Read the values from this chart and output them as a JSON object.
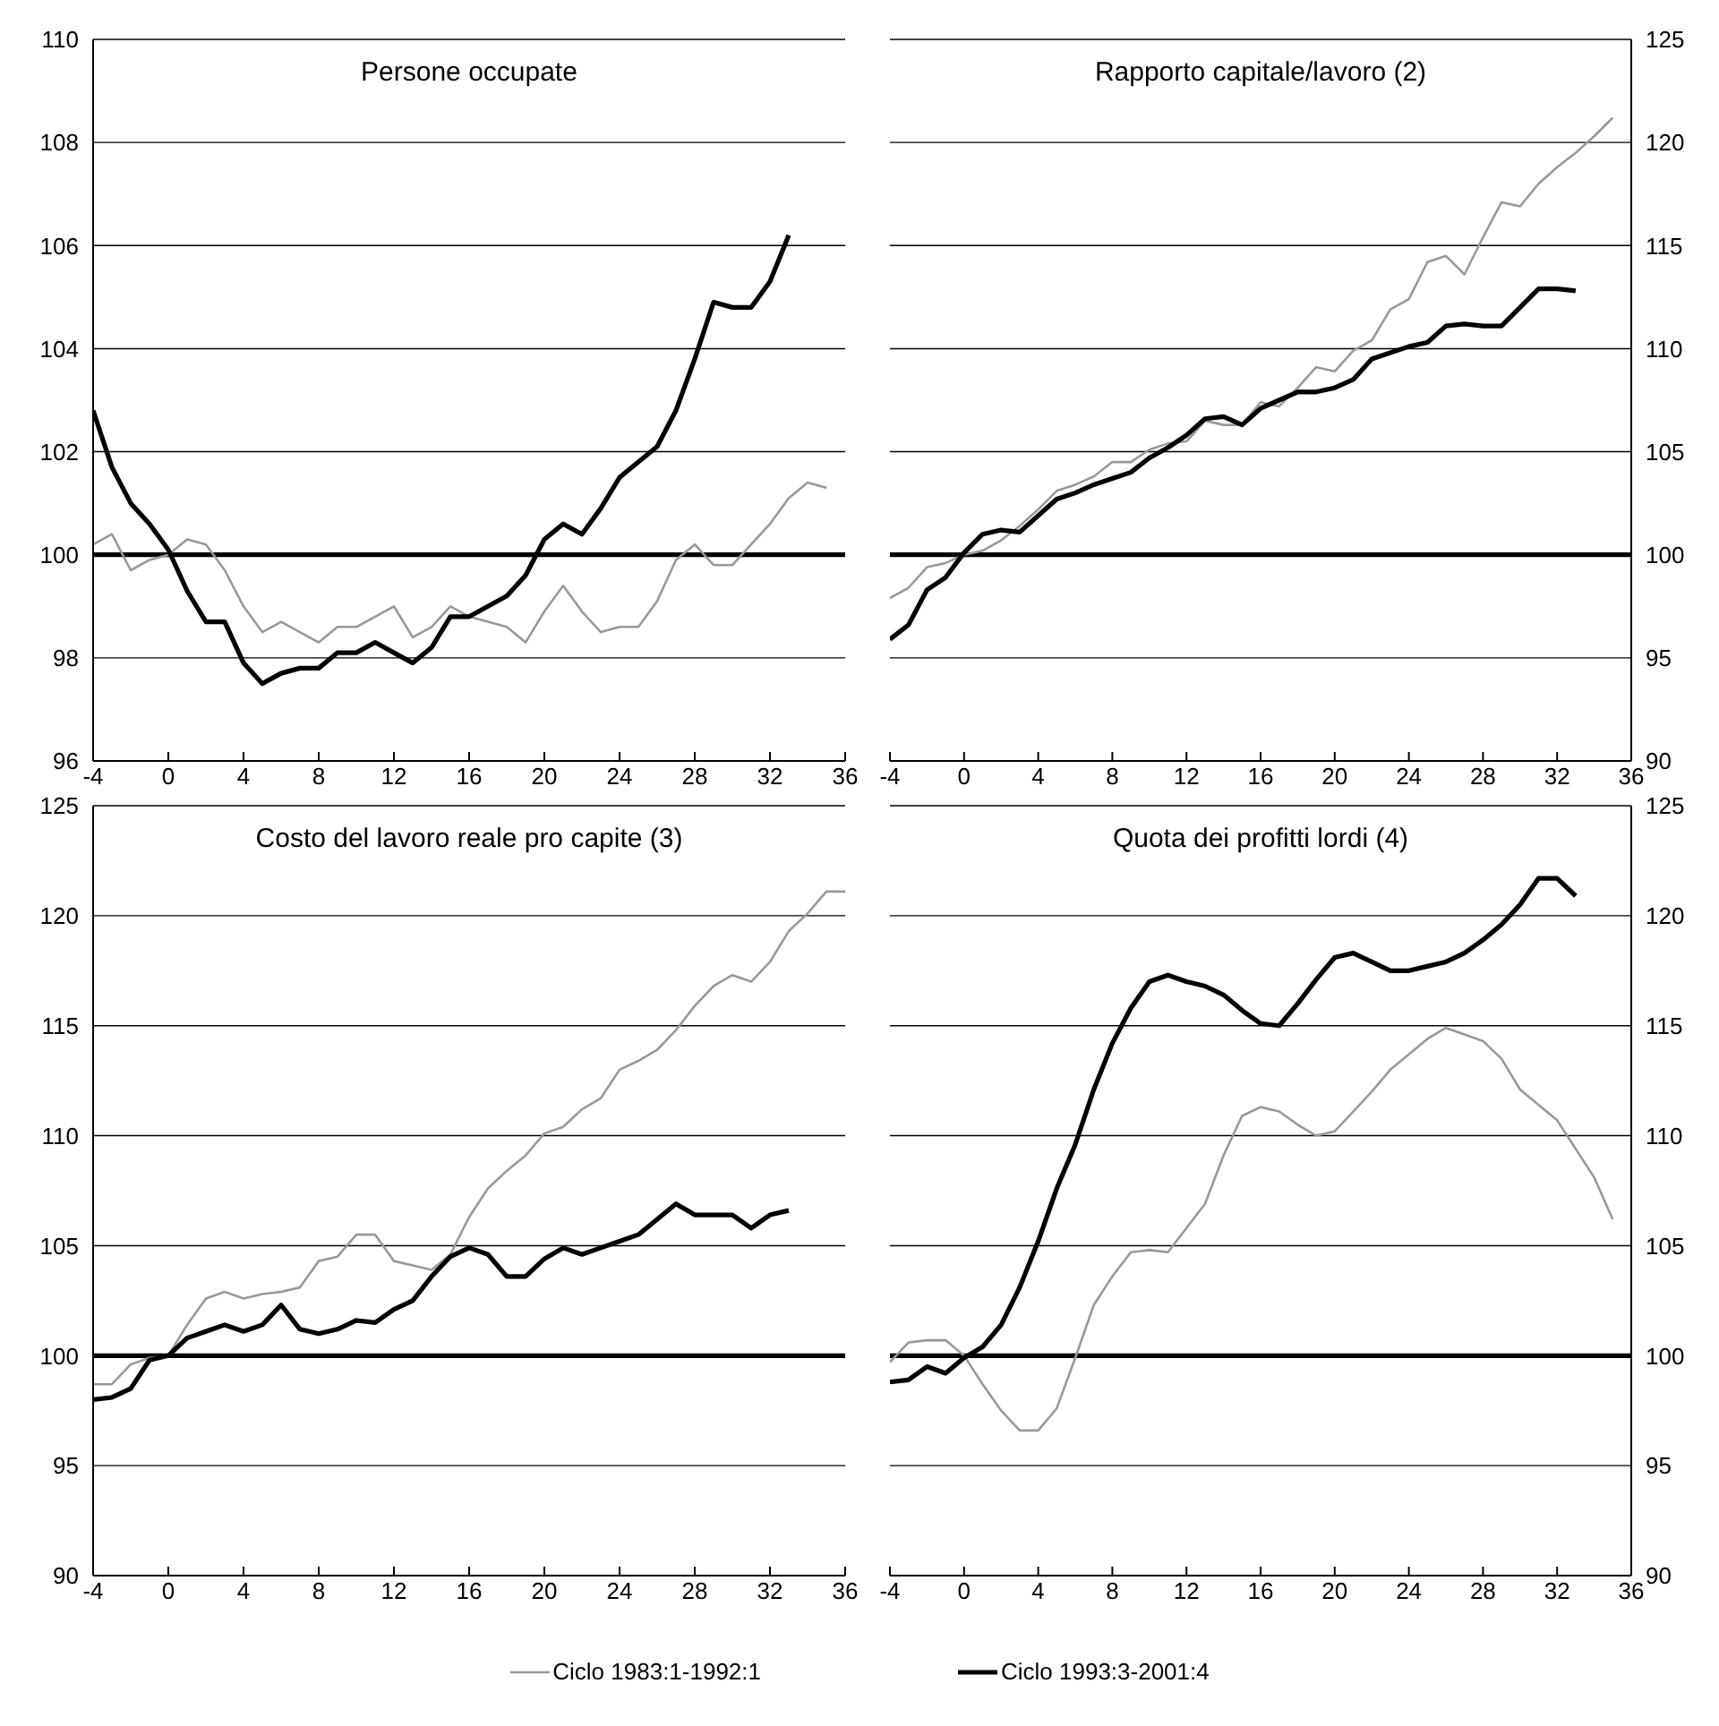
{
  "chart_data": [
    {
      "type": "line",
      "title": "Persone occupate",
      "x": [
        -4,
        -3,
        -2,
        -1,
        0,
        1,
        2,
        3,
        4,
        5,
        6,
        7,
        8,
        9,
        10,
        11,
        12,
        13,
        14,
        15,
        16,
        17,
        18,
        19,
        20,
        21,
        22,
        23,
        24,
        25,
        26,
        27,
        28,
        29,
        30,
        31,
        32,
        33,
        34,
        35
      ],
      "xlim": [
        -4,
        36
      ],
      "xticks": [
        -4,
        0,
        4,
        8,
        12,
        16,
        20,
        24,
        28,
        32,
        36
      ],
      "ylim": [
        96,
        110
      ],
      "yticks": [
        96,
        98,
        100,
        102,
        104,
        106,
        108,
        110
      ],
      "grid": "y",
      "legend": "bottom",
      "ref_lines": [
        {
          "axis": "y",
          "value": 100,
          "color": "#000000"
        }
      ],
      "series": [
        {
          "name": "Ciclo 1983:1-1992:1",
          "color": "#999999",
          "values": [
            100.2,
            100.4,
            99.7,
            99.9,
            100,
            100.3,
            100.2,
            99.7,
            99,
            98.5,
            98.7,
            98.5,
            98.3,
            98.6,
            98.6,
            98.8,
            99,
            98.4,
            98.6,
            99,
            98.8,
            98.7,
            98.6,
            98.3,
            98.9,
            99.4,
            98.9,
            98.5,
            98.6,
            98.6,
            99.1,
            99.9,
            100.2,
            99.8,
            99.8,
            100.2,
            100.6,
            101.1,
            101.4,
            101.3
          ]
        },
        {
          "name": "Ciclo 1993:3-2001:4",
          "color": "#000000",
          "values": [
            102.8,
            101.7,
            101,
            100.6,
            100.1,
            99.3,
            98.7,
            98.7,
            97.9,
            97.5,
            97.7,
            97.8,
            97.8,
            98.1,
            98.1,
            98.3,
            98.1,
            97.9,
            98.2,
            98.8,
            98.8,
            99,
            99.2,
            99.6,
            100.3,
            100.6,
            100.4,
            100.9,
            101.5,
            101.8,
            102.1,
            102.8,
            103.8,
            104.9,
            104.8,
            104.8,
            105.3,
            106.2,
            null,
            null
          ]
        }
      ]
    },
    {
      "type": "line",
      "title": "Rapporto capitale/lavoro (2)",
      "x": [
        -4,
        -3,
        -2,
        -1,
        0,
        1,
        2,
        3,
        4,
        5,
        6,
        7,
        8,
        9,
        10,
        11,
        12,
        13,
        14,
        15,
        16,
        17,
        18,
        19,
        20,
        21,
        22,
        23,
        24,
        25,
        26,
        27,
        28,
        29,
        30,
        31,
        32,
        33,
        34,
        35
      ],
      "xlim": [
        -4,
        36
      ],
      "xticks": [
        -4,
        0,
        4,
        8,
        12,
        16,
        20,
        24,
        28,
        32,
        36
      ],
      "y2lim": [
        90,
        125
      ],
      "y2ticks": [
        90,
        95,
        100,
        105,
        110,
        115,
        120,
        125
      ],
      "grid": "y",
      "ref_lines": [
        {
          "axis": "y2",
          "value": 100,
          "color": "#000000"
        }
      ],
      "series": [
        {
          "color": "#999999",
          "axis": "y2",
          "values": [
            97.9,
            98.4,
            99.4,
            99.6,
            100,
            100.2,
            100.7,
            101.4,
            102.2,
            103.1,
            103.4,
            103.8,
            104.5,
            104.5,
            105.1,
            105.4,
            105.5,
            106.5,
            106.3,
            106.3,
            107.4,
            107.2,
            108.1,
            109.1,
            108.9,
            109.9,
            110.4,
            111.9,
            112.4,
            114.2,
            114.5,
            113.6,
            115.4,
            117.1,
            116.9,
            118,
            118.8,
            119.5,
            120.3,
            121.2
          ]
        },
        {
          "color": "#000000",
          "axis": "y2",
          "values": [
            95.9,
            96.6,
            98.3,
            98.9,
            100.1,
            101,
            101.2,
            101.1,
            101.9,
            102.7,
            103,
            103.4,
            103.7,
            104,
            104.7,
            105.2,
            105.8,
            106.6,
            106.7,
            106.3,
            107.1,
            107.5,
            107.9,
            107.9,
            108.1,
            108.5,
            109.5,
            109.8,
            110.1,
            110.3,
            111.1,
            111.2,
            111.1,
            111.1,
            112,
            112.9,
            112.9,
            112.8,
            null,
            null
          ]
        }
      ]
    },
    {
      "type": "line",
      "title": "Costo del lavoro reale pro capite (3)",
      "x": [
        -4,
        -3,
        -2,
        -1,
        0,
        1,
        2,
        3,
        4,
        5,
        6,
        7,
        8,
        9,
        10,
        11,
        12,
        13,
        14,
        15,
        16,
        17,
        18,
        19,
        20,
        21,
        22,
        23,
        24,
        25,
        26,
        27,
        28,
        29,
        30,
        31,
        32,
        33,
        34,
        35,
        36
      ],
      "xlim": [
        -4,
        36
      ],
      "xticks": [
        -4,
        0,
        4,
        8,
        12,
        16,
        20,
        24,
        28,
        32,
        36
      ],
      "ylim": [
        90,
        125
      ],
      "yticks": [
        90,
        95,
        100,
        105,
        110,
        115,
        120,
        125
      ],
      "grid": "y",
      "ref_lines": [
        {
          "axis": "y",
          "value": 100,
          "color": "#000000"
        }
      ],
      "series": [
        {
          "color": "#999999",
          "values": [
            98.7,
            98.7,
            99.6,
            99.9,
            100,
            101.4,
            102.6,
            102.9,
            102.6,
            102.8,
            102.9,
            103.1,
            104.3,
            104.5,
            105.5,
            105.5,
            104.3,
            104.1,
            103.9,
            104.6,
            106.3,
            107.6,
            108.4,
            109.1,
            110.1,
            110.4,
            111.2,
            111.7,
            113,
            113.4,
            113.9,
            114.8,
            115.9,
            116.8,
            117.3,
            117,
            117.9,
            119.3,
            120.1,
            121.1,
            121.1
          ]
        },
        {
          "color": "#000000",
          "values": [
            98,
            98.1,
            98.5,
            99.8,
            100,
            100.8,
            101.1,
            101.4,
            101.1,
            101.4,
            102.3,
            101.2,
            101,
            101.2,
            101.6,
            101.5,
            102.1,
            102.5,
            103.6,
            104.5,
            104.9,
            104.6,
            103.6,
            103.6,
            104.4,
            104.9,
            104.6,
            104.9,
            105.2,
            105.5,
            106.2,
            106.9,
            106.4,
            106.4,
            106.4,
            105.8,
            106.4,
            106.6,
            null,
            null,
            null
          ]
        }
      ]
    },
    {
      "type": "line",
      "title": "Quota dei profitti lordi (4)",
      "x": [
        -4,
        -3,
        -2,
        -1,
        0,
        1,
        2,
        3,
        4,
        5,
        6,
        7,
        8,
        9,
        10,
        11,
        12,
        13,
        14,
        15,
        16,
        17,
        18,
        19,
        20,
        21,
        22,
        23,
        24,
        25,
        26,
        27,
        28,
        29,
        30,
        31,
        32,
        33,
        34,
        35
      ],
      "xlim": [
        -4,
        36
      ],
      "xticks": [
        -4,
        0,
        4,
        8,
        12,
        16,
        20,
        24,
        28,
        32,
        36
      ],
      "y2lim": [
        90,
        125
      ],
      "y2ticks": [
        90,
        95,
        100,
        105,
        110,
        115,
        120,
        125
      ],
      "grid": "y",
      "ref_lines": [
        {
          "axis": "y2",
          "value": 100,
          "color": "#000000"
        }
      ],
      "series": [
        {
          "color": "#999999",
          "axis": "y2",
          "values": [
            99.7,
            100.6,
            100.7,
            100.7,
            100,
            98.7,
            97.5,
            96.6,
            96.6,
            97.6,
            99.9,
            102.3,
            103.6,
            104.7,
            104.8,
            104.7,
            105.8,
            106.9,
            109.1,
            110.9,
            111.3,
            111.1,
            110.5,
            110,
            110.2,
            111.1,
            112,
            113,
            113.7,
            114.4,
            114.9,
            114.6,
            114.3,
            113.5,
            112.1,
            111.4,
            110.7,
            109.4,
            108.1,
            106.2
          ]
        },
        {
          "color": "#000000",
          "axis": "y2",
          "values": [
            98.8,
            98.9,
            99.5,
            99.2,
            99.9,
            100.4,
            101.4,
            103.1,
            105.2,
            107.6,
            109.6,
            112.1,
            114.2,
            115.8,
            117,
            117.3,
            117,
            116.8,
            116.4,
            115.7,
            115.1,
            115,
            116,
            117.1,
            118.1,
            118.3,
            117.9,
            117.5,
            117.5,
            117.7,
            117.9,
            118.3,
            118.9,
            119.6,
            120.5,
            121.7,
            121.7,
            120.9,
            null,
            null
          ]
        }
      ]
    }
  ]
}
